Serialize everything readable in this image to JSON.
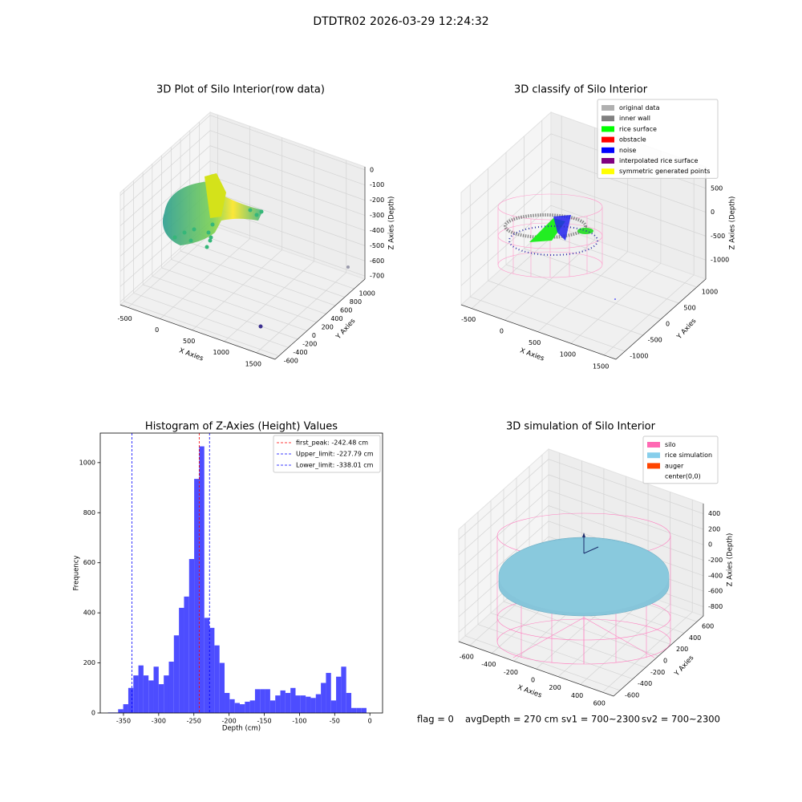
{
  "title": "DTDTR02 2026-03-29 12:24:32",
  "chart_data": [
    {
      "type": "scatter3d",
      "title": "3D Plot of Silo Interior(row data)",
      "xlabel": "X Axies",
      "ylabel": "Y Axies",
      "zlabel": "Z Axies (Depth)",
      "xlim": [
        -620,
        1790
      ],
      "ylim": [
        -680,
        1230
      ],
      "zlim": [
        -720,
        20
      ],
      "xticks": [
        -500,
        0,
        500,
        1000,
        1500
      ],
      "yticks": [
        -600,
        -400,
        -200,
        0,
        200,
        400,
        600,
        800,
        1000
      ],
      "zticks": [
        -700,
        -600,
        -500,
        -400,
        -300,
        -200,
        -100,
        0
      ]
    },
    {
      "type": "scatter3d",
      "title": "3D classify of Silo Interior",
      "xlabel": "X Axies",
      "ylabel": "Y Axies",
      "zlabel": "Z Axies (Depth)",
      "xlim": [
        -660,
        1680
      ],
      "ylim": [
        -1250,
        1250
      ],
      "zlim": [
        -1400,
        950
      ],
      "xticks": [
        -500,
        0,
        500,
        1000,
        1500
      ],
      "yticks": [
        -1000,
        -500,
        0,
        500,
        1000
      ],
      "zticks": [
        -1000,
        -500,
        0,
        500
      ],
      "series": [
        {
          "name": "original data",
          "color": "#b0b0b0"
        },
        {
          "name": "inner wall",
          "color": "#808080"
        },
        {
          "name": "rice surface",
          "color": "#00ff00"
        },
        {
          "name": "obstacle",
          "color": "#ff0000"
        },
        {
          "name": "noise",
          "color": "#0000ff"
        },
        {
          "name": "interpolated rice surface",
          "color": "#800080"
        },
        {
          "name": "symmetric generated points",
          "color": "#ffff00"
        }
      ]
    },
    {
      "type": "histogram",
      "title": "Histogram of Z-Axies (Height) Values",
      "xlabel": "Depth (cm)",
      "ylabel": "Frequency",
      "color": "#4d4dff",
      "bins": [
        -372,
        -364.8,
        -357.6,
        -350.4,
        -343.2,
        -336,
        -328.8,
        -321.6,
        -314.4,
        -307.2,
        -300,
        -292.8,
        -285.6,
        -278.4,
        -271.2,
        -264,
        -256.8,
        -249.6,
        -242.4,
        -235.2,
        -228,
        -220.8,
        -213.6,
        -206.4,
        -199.2,
        -192,
        -184.8,
        -177.6,
        -170.4,
        -163.2,
        -156,
        -148.8,
        -141.6,
        -134.4,
        -127.2,
        -120,
        -112.8,
        -105.6,
        -98.4,
        -91.2,
        -84,
        -76.8,
        -69.6,
        -62.4,
        -55.2,
        -48,
        -40.8,
        -33.6,
        -26.4,
        -19.2,
        -12,
        -4.8
      ],
      "counts": [
        2,
        2,
        15,
        35,
        100,
        150,
        190,
        150,
        130,
        185,
        115,
        150,
        205,
        310,
        420,
        465,
        615,
        935,
        1065,
        380,
        340,
        270,
        200,
        80,
        55,
        40,
        35,
        45,
        50,
        95,
        95,
        95,
        50,
        70,
        90,
        80,
        100,
        70,
        70,
        65,
        60,
        75,
        120,
        160,
        50,
        145,
        185,
        80,
        20,
        20,
        20
      ],
      "xlim": [
        -383,
        18
      ],
      "ylim": [
        0,
        1118
      ],
      "xticks": [
        -350,
        -300,
        -250,
        -200,
        -150,
        -100,
        -50,
        0
      ],
      "yticks": [
        0,
        200,
        400,
        600,
        800,
        1000
      ],
      "lines": [
        {
          "name": "first_peak: -242.48 cm",
          "value": -242.48,
          "color": "#ff0000"
        },
        {
          "name": "Upper_limit: -227.79 cm",
          "value": -227.79,
          "color": "#0000ff"
        },
        {
          "name": "Lower_limit: -338.01 cm",
          "value": -338.01,
          "color": "#0000ff"
        }
      ],
      "legend": "upper right"
    },
    {
      "type": "scatter3d",
      "title": "3D simulation of Silo Interior",
      "xlabel": "X Axies",
      "ylabel": "Y Axies",
      "zlabel": "Z Axies (Depth)",
      "xlim": [
        -700,
        700
      ],
      "ylim": [
        -700,
        700
      ],
      "zlim": [
        -920,
        530
      ],
      "xticks": [
        -600,
        -400,
        -200,
        0,
        200,
        400,
        600
      ],
      "yticks": [
        -600,
        -400,
        -200,
        0,
        200,
        400,
        600
      ],
      "zticks": [
        -800,
        -600,
        -400,
        -200,
        0,
        200,
        400
      ],
      "series": [
        {
          "name": "silo",
          "color": "#ff69b4"
        },
        {
          "name": "rice simulation",
          "color": "#87ceeb"
        },
        {
          "name": "auger",
          "color": "#ff4500"
        },
        {
          "name": "center(0,0)",
          "color": "#ffffff"
        }
      ]
    }
  ],
  "footer": [
    "flag = 0",
    "avgDepth = 270 cm",
    "sv1 = 700~2300",
    "sv2 = 700~2300"
  ]
}
